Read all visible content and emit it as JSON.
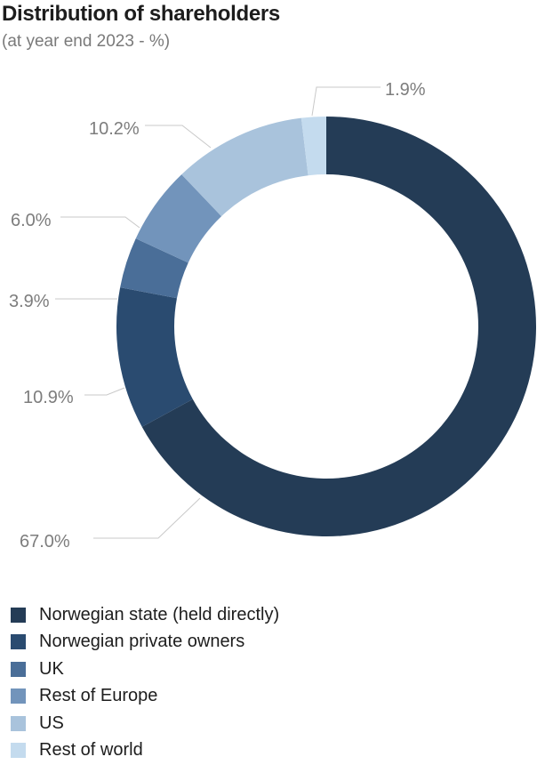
{
  "title": "Distribution of shareholders",
  "subtitle": "(at year end 2023 - %)",
  "chart_data": {
    "type": "pie",
    "variant": "donut",
    "title": "Distribution of shareholders",
    "subtitle": "(at year end 2023 - %)",
    "unit": "%",
    "legend_position": "bottom-left",
    "slices": [
      {
        "name": "Norwegian state (held directly)",
        "value": 67.0,
        "label": "67.0%",
        "color": "#243c56"
      },
      {
        "name": "Norwegian private owners",
        "value": 10.9,
        "label": "10.9%",
        "color": "#2a4b70"
      },
      {
        "name": "UK",
        "value": 3.9,
        "label": "3.9%",
        "color": "#4a6e98"
      },
      {
        "name": "Rest of Europe",
        "value": 6.0,
        "label": "6.0%",
        "color": "#7294bb"
      },
      {
        "name": "US",
        "value": 10.2,
        "label": "10.2%",
        "color": "#a9c3dc"
      },
      {
        "name": "Rest of world",
        "value": 1.9,
        "label": "1.9%",
        "color": "#c4dbee"
      }
    ]
  }
}
